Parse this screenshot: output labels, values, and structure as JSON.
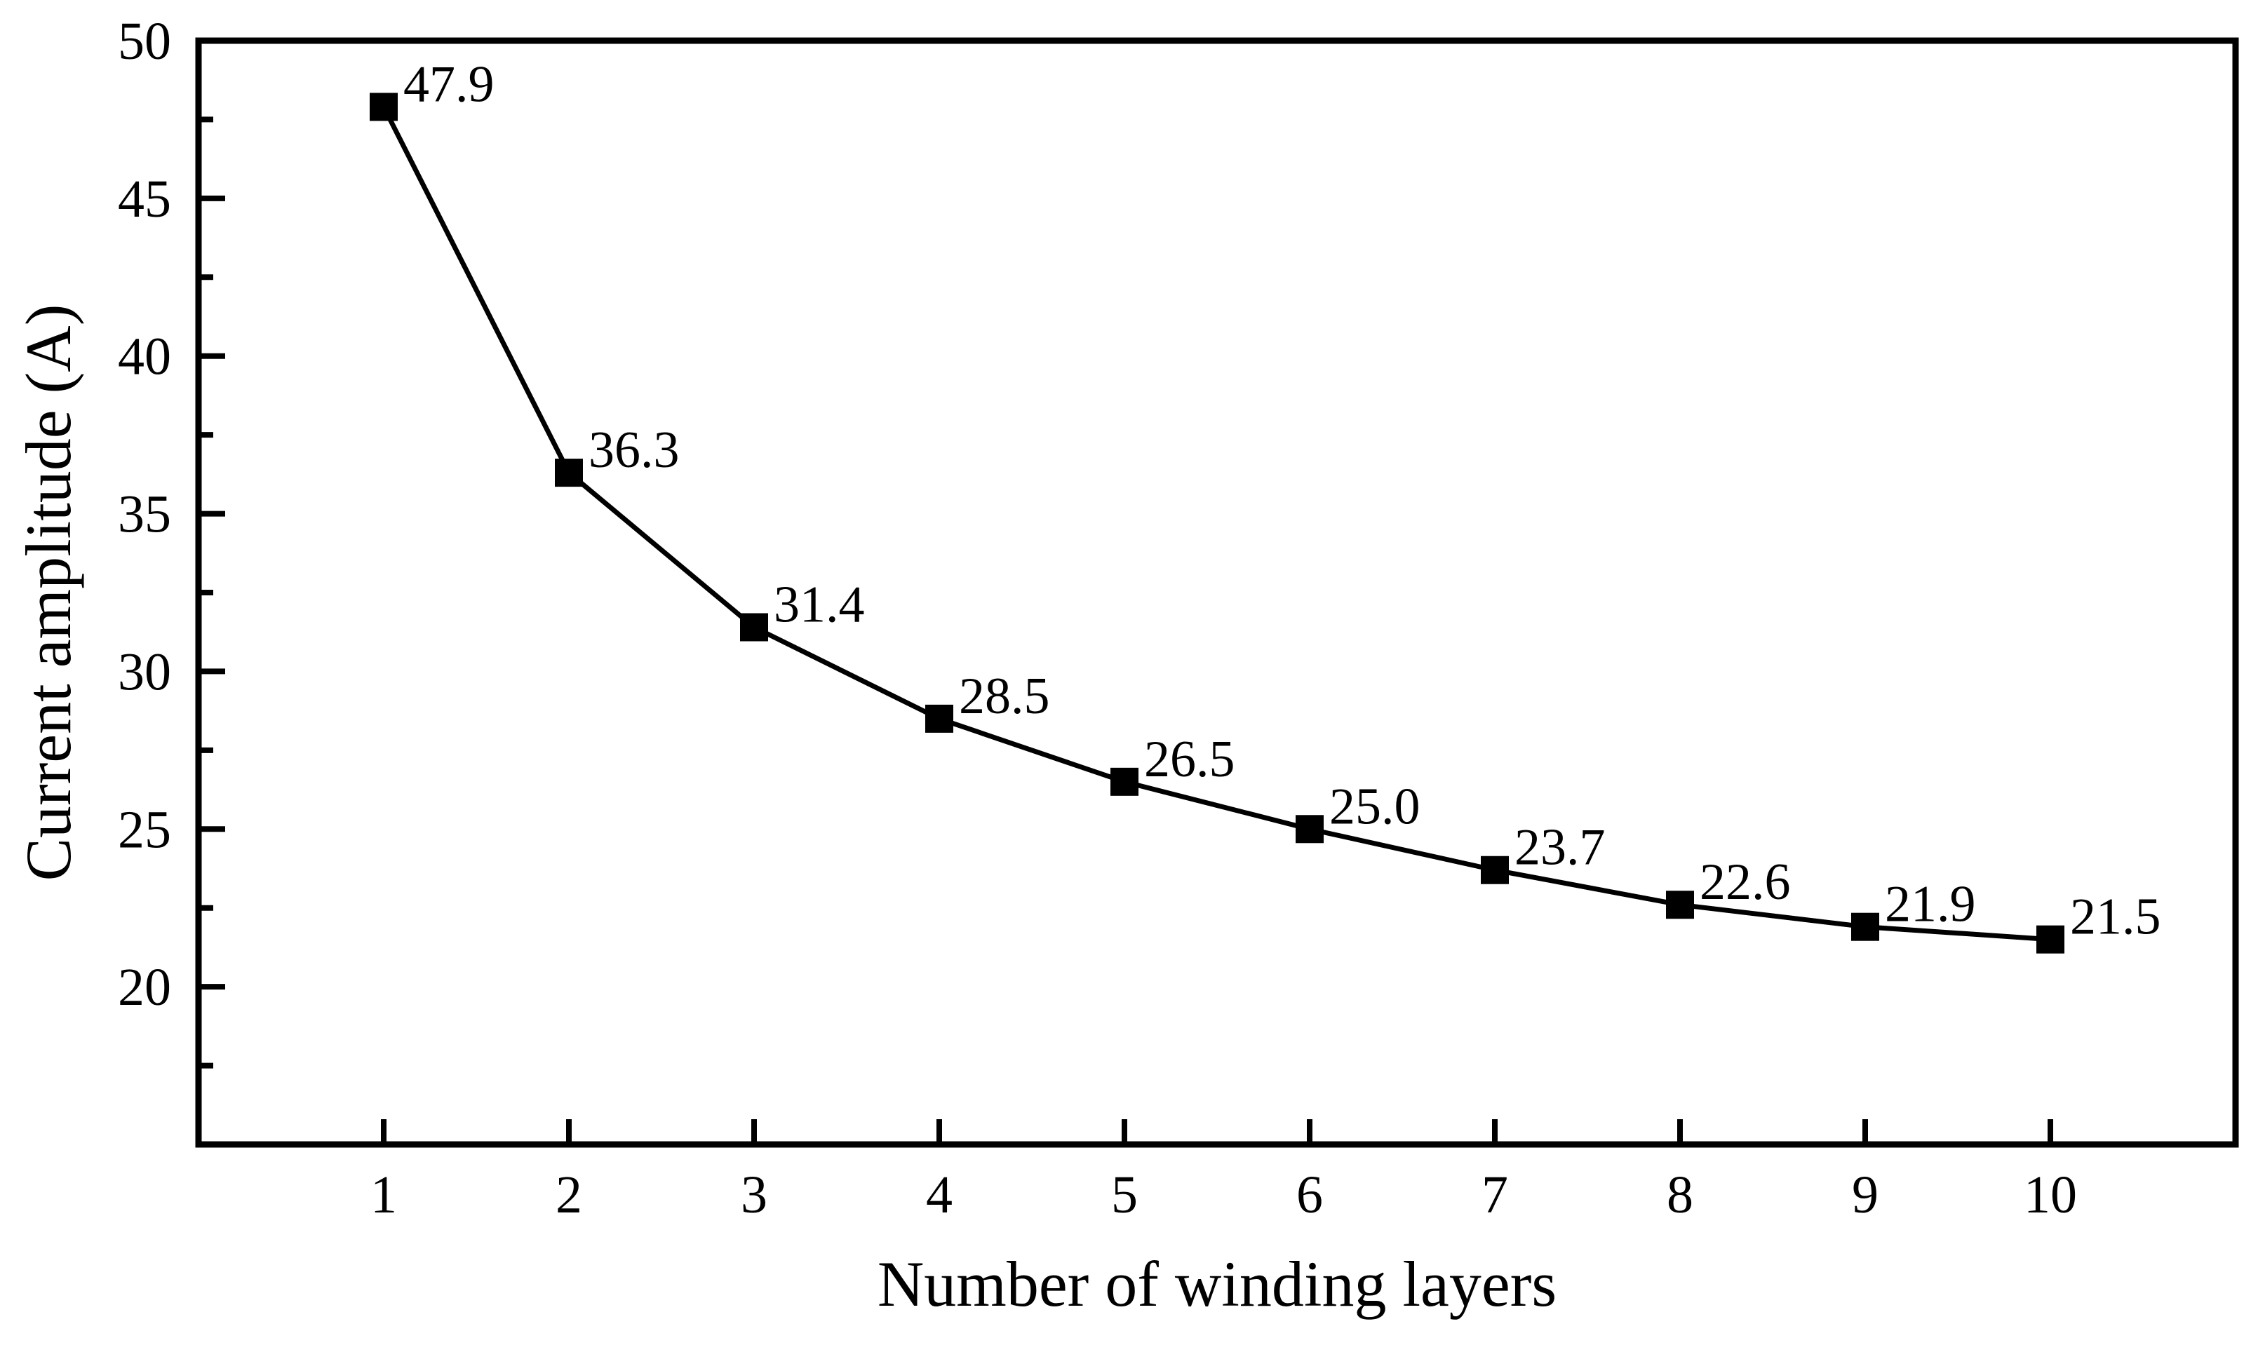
{
  "chart_data": {
    "type": "line",
    "title": "",
    "xlabel": "Number of winding layers",
    "ylabel": "Current amplitude (A)",
    "x": [
      1,
      2,
      3,
      4,
      5,
      6,
      7,
      8,
      9,
      10
    ],
    "values": [
      47.9,
      36.3,
      31.4,
      28.5,
      26.5,
      25.0,
      23.7,
      22.6,
      21.9,
      21.5
    ],
    "point_labels": [
      "47.9",
      "36.3",
      "31.4",
      "28.5",
      "26.5",
      "25.0",
      "23.7",
      "22.6",
      "21.9",
      "21.5"
    ],
    "series_name": "Current amplitude",
    "xlim": [
      0,
      11
    ],
    "ylim": [
      15,
      50
    ],
    "x_ticks": [
      1,
      2,
      3,
      4,
      5,
      6,
      7,
      8,
      9,
      10
    ],
    "x_tick_labels": [
      "1",
      "2",
      "3",
      "4",
      "5",
      "6",
      "7",
      "8",
      "9",
      "10"
    ],
    "y_ticks": [
      20,
      25,
      30,
      35,
      40,
      45,
      50
    ],
    "y_tick_labels": [
      "20",
      "25",
      "30",
      "35",
      "40",
      "45",
      "50"
    ],
    "y_minor_ticks": [
      17.5,
      22.5,
      27.5,
      32.5,
      37.5,
      42.5,
      47.5
    ],
    "grid": false,
    "legend_position": "none",
    "marker_shape": "filled-square",
    "line_color": "#000000",
    "marker_color": "#000000",
    "frame_color": "#000000",
    "text_color": "#000000",
    "background_color": "#ffffff"
  }
}
